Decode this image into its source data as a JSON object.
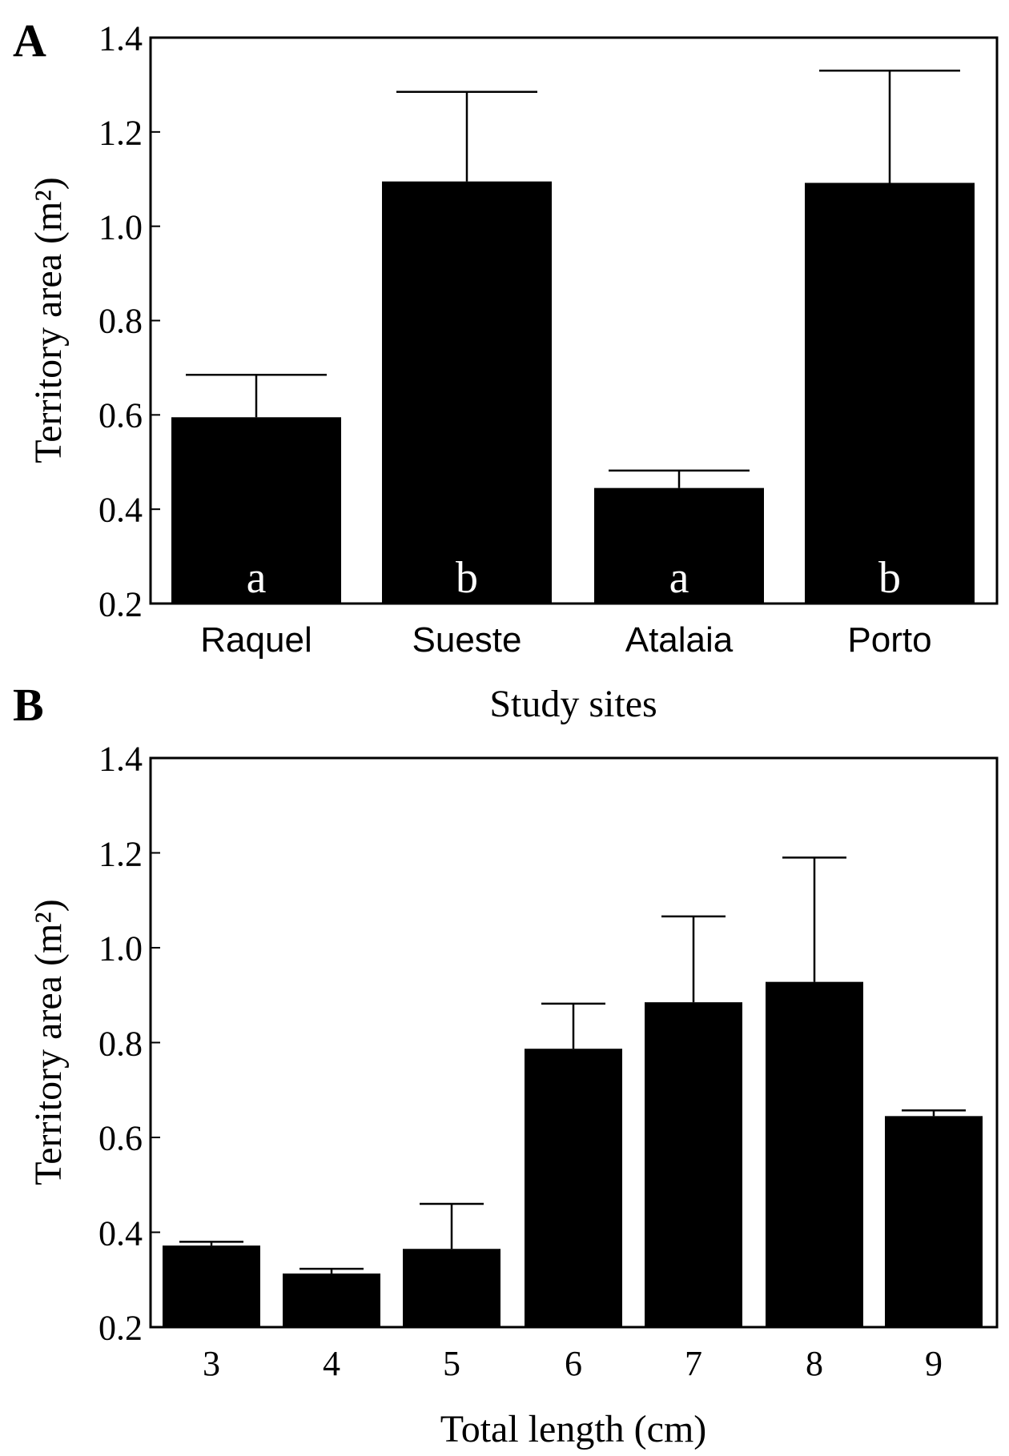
{
  "panels": [
    {
      "panel_label": "A",
      "tick_labels": [
        "0.2",
        "0.4",
        "0.6",
        "0.8",
        "1.0",
        "1.2",
        "1.4"
      ],
      "chart_data": {
        "type": "bar",
        "categories": [
          "Raquel",
          "Sueste",
          "Atalaia",
          "Porto"
        ],
        "values": [
          0.595,
          1.095,
          0.445,
          1.092
        ],
        "error_upper": [
          0.685,
          1.285,
          0.482,
          1.33
        ],
        "group_letters": [
          "a",
          "b",
          "a",
          "b"
        ],
        "ylabel": "Territory area (m²)",
        "xlabel": "Study sites",
        "ylim": [
          0.2,
          1.4
        ],
        "yticks": [
          0.2,
          0.4,
          0.6,
          0.8,
          1.0,
          1.2,
          1.4
        ],
        "bar_color": "#000000",
        "letter_color": "#ffffff",
        "grid": false,
        "legend": "none"
      }
    },
    {
      "panel_label": "B",
      "tick_labels": [
        "0.2",
        "0.4",
        "0.6",
        "0.8",
        "1.0",
        "1.2",
        "1.4"
      ],
      "chart_data": {
        "type": "bar",
        "categories": [
          "3",
          "4",
          "5",
          "6",
          "7",
          "8",
          "9"
        ],
        "values": [
          0.372,
          0.313,
          0.365,
          0.787,
          0.885,
          0.928,
          0.645
        ],
        "error_upper": [
          0.38,
          0.323,
          0.46,
          0.882,
          1.066,
          1.19,
          0.657
        ],
        "group_letters": [],
        "ylabel": "Territory area (m²)",
        "xlabel": "Total length (cm)",
        "ylim": [
          0.2,
          1.4
        ],
        "yticks": [
          0.2,
          0.4,
          0.6,
          0.8,
          1.0,
          1.2,
          1.4
        ],
        "bar_color": "#000000",
        "grid": false,
        "legend": "none"
      }
    }
  ]
}
